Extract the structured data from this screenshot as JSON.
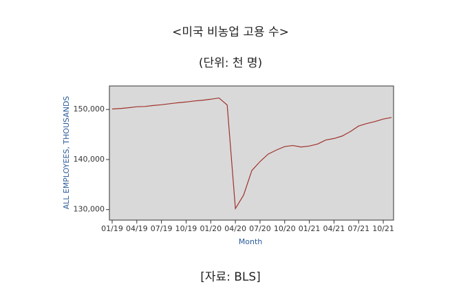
{
  "chart_data": {
    "type": "line",
    "title": "<미국 비농업 고용 수>",
    "subtitle": "(단위: 천 명)",
    "source": "[자료: BLS]",
    "x_label": "Month",
    "y_label": "ALL EMPLOYEES, THOUSANDS",
    "categories": [
      "01/19",
      null,
      null,
      "04/19",
      null,
      null,
      "07/19",
      null,
      null,
      "10/19",
      null,
      null,
      "01/20",
      null,
      null,
      "04/20",
      null,
      null,
      "07/20",
      null,
      null,
      "10/20",
      null,
      null,
      "01/21",
      null,
      null,
      "04/21",
      null,
      null,
      "07/21",
      null,
      null,
      "10/21",
      null
    ],
    "series": [
      {
        "name": "ALL EMPLOYEES",
        "color": "#a0302a",
        "values": [
          150100,
          150200,
          150350,
          150550,
          150600,
          150800,
          150950,
          151150,
          151350,
          151500,
          151700,
          151850,
          152050,
          152300,
          150900,
          130200,
          132900,
          137800,
          139600,
          141100,
          141900,
          142600,
          142800,
          142500,
          142700,
          143100,
          143900,
          144200,
          144700,
          145600,
          146700,
          147200,
          147600,
          148100,
          148400
        ]
      }
    ],
    "ylim": [
      127900,
      154700
    ],
    "yticks": [
      {
        "value": 130000,
        "label": "130,000"
      },
      {
        "value": 140000,
        "label": "140,000"
      },
      {
        "value": 150000,
        "label": "150,000"
      }
    ],
    "grid": false,
    "background": "#d9d9d9"
  }
}
